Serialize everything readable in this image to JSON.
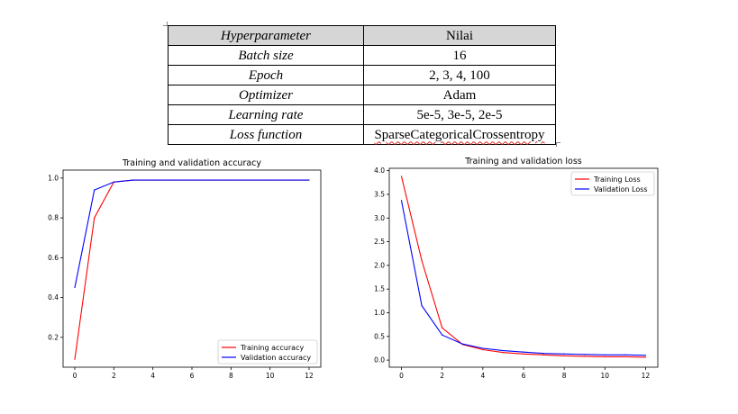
{
  "table": {
    "header": {
      "label": "Hyperparameter",
      "value": "Nilai"
    },
    "rows": [
      {
        "label": "Batch size",
        "value": "16"
      },
      {
        "label": "Epoch",
        "value": "2, 3, 4, 100"
      },
      {
        "label": "Optimizer",
        "value": "Adam"
      },
      {
        "label": "Learning rate",
        "value": "5e-5, 3e-5, 2e-5"
      },
      {
        "label": "Loss function",
        "value": "SparseCategoricalCrossentropy"
      }
    ]
  },
  "chart_data": [
    {
      "type": "line",
      "title": "Training and validation accuracy",
      "xlabel": "",
      "ylabel": "",
      "xlim": [
        -0.6,
        12.6
      ],
      "ylim": [
        0.05,
        1.04
      ],
      "xticks": [
        0,
        2,
        4,
        6,
        8,
        10,
        12
      ],
      "yticks": [
        0.2,
        0.4,
        0.6,
        0.8,
        1.0
      ],
      "legend": "lower-right",
      "grid": false,
      "series": [
        {
          "name": "Training accuracy",
          "color": "#ff0000",
          "x": [
            0,
            1,
            2,
            3,
            4,
            5,
            6,
            7,
            8,
            9,
            10,
            11,
            12
          ],
          "y": [
            0.09,
            0.8,
            0.98,
            0.99,
            0.99,
            0.99,
            0.99,
            0.99,
            0.99,
            0.99,
            0.99,
            0.99,
            0.99
          ]
        },
        {
          "name": "Validation accuracy",
          "color": "#0000ff",
          "x": [
            0,
            1,
            2,
            3,
            4,
            5,
            6,
            7,
            8,
            9,
            10,
            11,
            12
          ],
          "y": [
            0.45,
            0.94,
            0.98,
            0.99,
            0.99,
            0.99,
            0.99,
            0.99,
            0.99,
            0.99,
            0.99,
            0.99,
            0.99
          ]
        }
      ]
    },
    {
      "type": "line",
      "title": "Training and validation loss",
      "xlabel": "",
      "ylabel": "",
      "xlim": [
        -0.6,
        12.6
      ],
      "ylim": [
        -0.15,
        4.05
      ],
      "xticks": [
        0,
        2,
        4,
        6,
        8,
        10,
        12
      ],
      "yticks": [
        0.0,
        0.5,
        1.0,
        1.5,
        2.0,
        2.5,
        3.0,
        3.5,
        4.0
      ],
      "legend": "upper-right",
      "grid": false,
      "series": [
        {
          "name": "Training Loss",
          "color": "#ff0000",
          "x": [
            0,
            1,
            2,
            3,
            4,
            5,
            6,
            7,
            8,
            9,
            10,
            11,
            12
          ],
          "y": [
            3.88,
            2.1,
            0.68,
            0.33,
            0.22,
            0.16,
            0.13,
            0.11,
            0.09,
            0.08,
            0.07,
            0.07,
            0.06
          ]
        },
        {
          "name": "Validation Loss",
          "color": "#0000ff",
          "x": [
            0,
            1,
            2,
            3,
            4,
            5,
            6,
            7,
            8,
            9,
            10,
            11,
            12
          ],
          "y": [
            3.37,
            1.15,
            0.53,
            0.34,
            0.25,
            0.2,
            0.17,
            0.14,
            0.13,
            0.12,
            0.11,
            0.11,
            0.1
          ]
        }
      ]
    }
  ]
}
